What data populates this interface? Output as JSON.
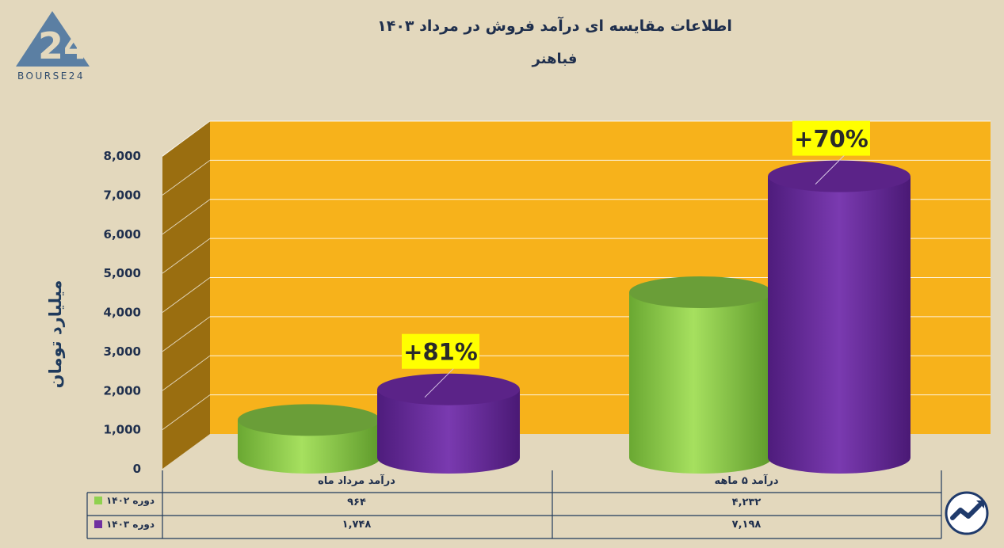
{
  "header": {
    "title": "اطلاعات مقایسه ای درآمد فروش در مرداد ۱۴۰۳",
    "subtitle": "فباهنر"
  },
  "logo": {
    "text": "BOURSE24",
    "mark": "24"
  },
  "colors": {
    "background": "#e3d8bd",
    "plot": "#f7b21b",
    "side_wall": "#9a6e10",
    "green": "#8fd14f",
    "purple": "#7030a0",
    "badge": "#ffff00",
    "text": "#1f2f4d"
  },
  "chart_data": {
    "type": "bar",
    "title": "اطلاعات مقایسه ای درآمد فروش در مرداد ۱۴۰۳",
    "subtitle": "فباهنر",
    "ylabel": "میلیارد تومان",
    "ylim": [
      0,
      8000
    ],
    "yticks": [
      0,
      1000,
      2000,
      3000,
      4000,
      5000,
      6000,
      7000,
      8000
    ],
    "ytick_labels": [
      "0",
      "1,000",
      "2,000",
      "3,000",
      "4,000",
      "5,000",
      "6,000",
      "7,000",
      "8,000"
    ],
    "categories": [
      "درآمد مرداد ماه",
      "درآمد ۵ ماهه"
    ],
    "series": [
      {
        "name": "دوره ۱۴۰۲",
        "values": [
          964,
          4232
        ],
        "value_labels": [
          "۹۶۴",
          "۴,۲۳۲"
        ],
        "color": "#8fd14f"
      },
      {
        "name": "دوره ۱۴۰۳",
        "values": [
          1748,
          7198
        ],
        "value_labels": [
          "۱,۷۴۸",
          "۷,۱۹۸"
        ],
        "color": "#7030a0"
      }
    ],
    "annotations": [
      "+81%",
      "+70%"
    ],
    "grid": true,
    "legend": "table-left"
  }
}
